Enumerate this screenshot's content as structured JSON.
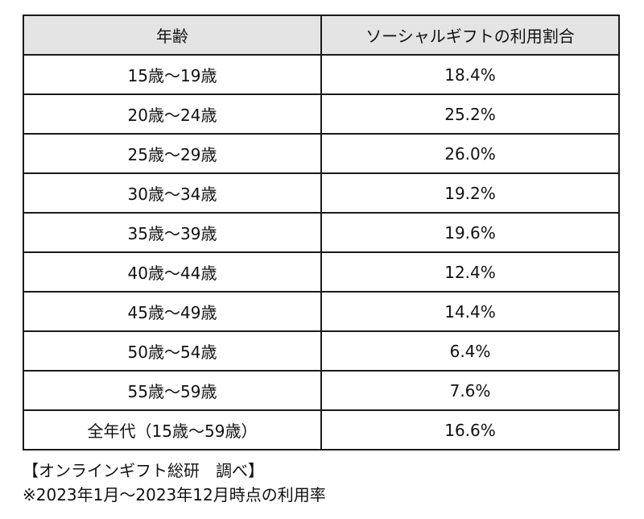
{
  "table": {
    "headers": [
      "年齢",
      "ソーシャルギフトの利用割合"
    ],
    "rows": [
      [
        "15歳～19歳",
        "18.4%"
      ],
      [
        "20歳～24歳",
        "25.2%"
      ],
      [
        "25歳～29歳",
        "26.0%"
      ],
      [
        "30歳～34歳",
        "19.2%"
      ],
      [
        "35歳～39歳",
        "19.6%"
      ],
      [
        "40歳～44歳",
        "12.4%"
      ],
      [
        "45歳～49歳",
        "14.4%"
      ],
      [
        "50歳～54歳",
        "6.4%"
      ],
      [
        "55歳～59歳",
        "7.6%"
      ],
      [
        "全年代（15歳～59歳）",
        "16.6%"
      ]
    ]
  },
  "footnotes": {
    "source": "【オンラインギフト総研　調べ】",
    "period": "※2023年1月～2023年12月時点の利用率"
  }
}
